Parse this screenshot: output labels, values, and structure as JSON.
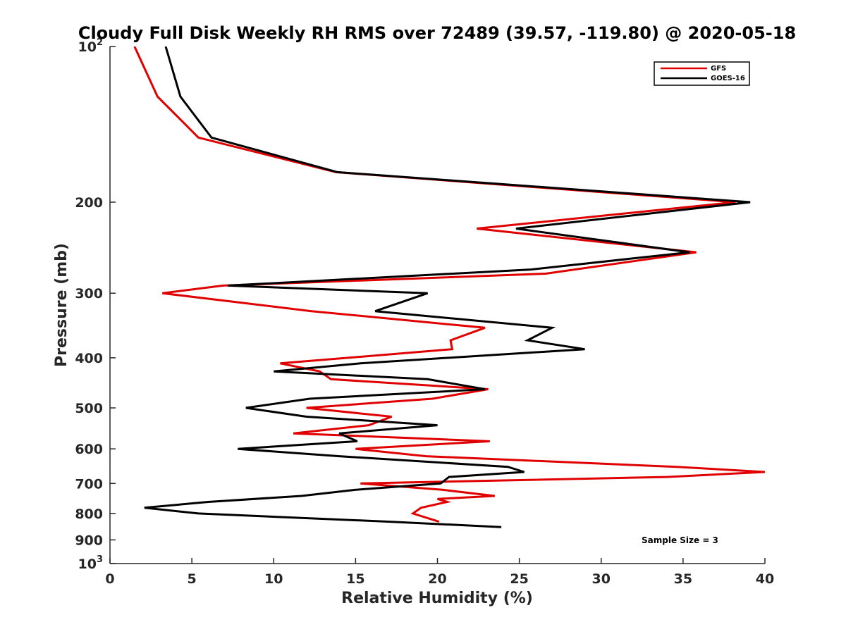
{
  "chart_data": {
    "type": "line",
    "title": "Cloudy Full Disk Weekly RH RMS over 72489 (39.57, -119.80) @ 2020-05-18",
    "xlabel": "Relative Humidity (%)",
    "ylabel": "Pressure (mb)",
    "xlim": [
      0,
      40
    ],
    "ylim": [
      100,
      1000
    ],
    "yscale": "log",
    "y_reversed": true,
    "x_ticks": [
      "0",
      "5",
      "10",
      "15",
      "20",
      "25",
      "30",
      "35",
      "40"
    ],
    "y_ticks": [
      {
        "value": 100,
        "label": "10",
        "sup": "2"
      },
      {
        "value": 200,
        "label": "200"
      },
      {
        "value": 300,
        "label": "300"
      },
      {
        "value": 400,
        "label": "400"
      },
      {
        "value": 500,
        "label": "500"
      },
      {
        "value": 600,
        "label": "600"
      },
      {
        "value": 700,
        "label": "700"
      },
      {
        "value": 800,
        "label": "800"
      },
      {
        "value": 900,
        "label": "900"
      },
      {
        "value": 1000,
        "label": "10",
        "sup": "3"
      }
    ],
    "grid": false,
    "legend_position": "top-right",
    "annotation": "Sample Size = 3",
    "series": [
      {
        "name": "GFS",
        "color": "#e00000",
        "points": [
          [
            1.5,
            100
          ],
          [
            2.9,
            125
          ],
          [
            5.4,
            150
          ],
          [
            13.8,
            175
          ],
          [
            38.2,
            200
          ],
          [
            22.4,
            225
          ],
          [
            35.8,
            250
          ],
          [
            26.6,
            275
          ],
          [
            6.9,
            290
          ],
          [
            3.2,
            300
          ],
          [
            12.3,
            325
          ],
          [
            22.9,
            350
          ],
          [
            20.8,
            370
          ],
          [
            20.9,
            385
          ],
          [
            10.4,
            410
          ],
          [
            12.8,
            425
          ],
          [
            13.5,
            440
          ],
          [
            23.1,
            460
          ],
          [
            19.7,
            480
          ],
          [
            12.0,
            500
          ],
          [
            17.2,
            520
          ],
          [
            15.8,
            540
          ],
          [
            11.2,
            560
          ],
          [
            23.2,
            580
          ],
          [
            15.0,
            600
          ],
          [
            19.3,
            620
          ],
          [
            34.6,
            650
          ],
          [
            40.0,
            665
          ],
          [
            34.0,
            680
          ],
          [
            15.3,
            700
          ],
          [
            20.3,
            720
          ],
          [
            23.5,
            740
          ],
          [
            20.0,
            750
          ],
          [
            20.6,
            760
          ],
          [
            19.0,
            780
          ],
          [
            18.5,
            800
          ],
          [
            20.1,
            830
          ]
        ]
      },
      {
        "name": "GOES-16",
        "color": "#000000",
        "points": [
          [
            3.4,
            100
          ],
          [
            4.3,
            125
          ],
          [
            6.2,
            150
          ],
          [
            13.9,
            175
          ],
          [
            39.1,
            200
          ],
          [
            24.8,
            225
          ],
          [
            35.4,
            250
          ],
          [
            25.7,
            270
          ],
          [
            7.2,
            290
          ],
          [
            19.4,
            300
          ],
          [
            16.2,
            325
          ],
          [
            27.0,
            350
          ],
          [
            25.5,
            370
          ],
          [
            29.0,
            385
          ],
          [
            15.3,
            410
          ],
          [
            10.0,
            425
          ],
          [
            19.4,
            440
          ],
          [
            22.9,
            460
          ],
          [
            12.2,
            480
          ],
          [
            8.3,
            500
          ],
          [
            12.0,
            520
          ],
          [
            20.0,
            540
          ],
          [
            14.0,
            560
          ],
          [
            15.1,
            580
          ],
          [
            7.8,
            600
          ],
          [
            14.0,
            620
          ],
          [
            24.3,
            650
          ],
          [
            25.3,
            665
          ],
          [
            20.7,
            680
          ],
          [
            20.2,
            700
          ],
          [
            15.0,
            720
          ],
          [
            11.7,
            740
          ],
          [
            6.0,
            760
          ],
          [
            2.1,
            780
          ],
          [
            5.4,
            800
          ],
          [
            17.1,
            830
          ],
          [
            23.9,
            850
          ]
        ]
      }
    ]
  }
}
